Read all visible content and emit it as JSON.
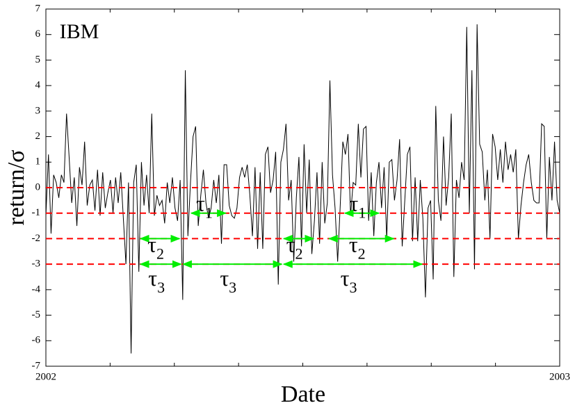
{
  "chart_data": {
    "type": "line",
    "annotation": "IBM",
    "x_label": "Date",
    "y_label": "return/σ",
    "xlim": [
      2002,
      2003
    ],
    "xticks": [
      2002,
      2003
    ],
    "ylim": [
      -7,
      7
    ],
    "yticks": [
      -7,
      -6,
      -5,
      -4,
      -3,
      -2,
      -1,
      0,
      1,
      2,
      3,
      4,
      5,
      6,
      7
    ],
    "series": [
      {
        "color": "#000000",
        "values": [
          -1.1,
          1.3,
          -1.8,
          0.5,
          0.2,
          -0.4,
          0.5,
          0.2,
          2.9,
          1.2,
          -0.6,
          0.4,
          -1.5,
          0.8,
          0.1,
          1.8,
          -0.7,
          0.1,
          0.3,
          -0.9,
          0.7,
          -1.1,
          0.6,
          -0.8,
          -0.2,
          0.3,
          -1.0,
          0.4,
          -0.6,
          0.6,
          -1.2,
          -3.0,
          0.2,
          -6.5,
          0.2,
          0.9,
          -3.3,
          1.0,
          -0.7,
          0.5,
          -1.0,
          2.9,
          -1.1,
          -0.3,
          -0.7,
          -0.5,
          -1.4,
          0.2,
          -0.6,
          0.4,
          -0.8,
          -1.3,
          0.3,
          -4.4,
          4.6,
          -1.9,
          0.2,
          2.0,
          2.4,
          -1.5,
          -0.3,
          0.7,
          -0.6,
          -1.2,
          -0.8,
          0.3,
          -0.6,
          0.5,
          -2.2,
          0.9,
          0.9,
          -0.7,
          -1.1,
          -1.2,
          -0.8,
          0.4,
          0.8,
          0.4,
          0.9,
          -0.3,
          -1.9,
          0.8,
          -2.4,
          0.6,
          -2.4,
          1.3,
          1.6,
          -0.2,
          0.3,
          1.4,
          -3.8,
          1.0,
          1.5,
          2.5,
          -0.5,
          0.3,
          -2.9,
          -0.4,
          1.2,
          -2.3,
          1.7,
          -1.0,
          1.1,
          -2.6,
          -1.3,
          0.6,
          -2.2,
          1.0,
          -1.4,
          -0.6,
          4.2,
          0.5,
          -0.8,
          -2.9,
          -0.7,
          1.8,
          1.3,
          2.1,
          -1.1,
          0.2,
          0.1,
          2.5,
          0.4,
          2.3,
          2.4,
          -1.3,
          0.6,
          -1.9,
          0.2,
          1.0,
          -0.8,
          0.8,
          -2.0,
          1.0,
          1.1,
          -0.5,
          0.3,
          1.9,
          -2.3,
          -0.5,
          1.3,
          1.6,
          -2.1,
          0.4,
          -2.1,
          0.3,
          -1.2,
          -4.3,
          -0.8,
          -0.5,
          -3.6,
          3.2,
          -0.5,
          -1.3,
          2.0,
          -0.7,
          0.4,
          2.9,
          -3.5,
          0.3,
          -0.4,
          1.0,
          0.3,
          6.3,
          -1.0,
          4.6,
          -3.2,
          6.4,
          1.7,
          1.4,
          -0.5,
          0.7,
          -2.0,
          2.1,
          1.6,
          0.3,
          1.5,
          0.2,
          1.8,
          0.7,
          1.3,
          0.6,
          1.5,
          -2.0,
          -0.7,
          0.2,
          0.9,
          1.3,
          0.2,
          -0.5,
          -0.6,
          -0.6,
          2.5,
          2.4,
          -2.0,
          1.2,
          -0.5,
          1.8,
          -0.5,
          -1.0
        ]
      }
    ],
    "reference_lines": {
      "values": [
        0,
        -1,
        -2,
        -3
      ],
      "color": "#ff0000",
      "style": "dashed"
    },
    "interval_color": "#00ee00",
    "intervals": [
      {
        "label": "τ",
        "sub": "1",
        "y": -1,
        "x": [
          2002.283,
          2002.35
        ]
      },
      {
        "label": "τ",
        "sub": "1",
        "y": -1,
        "x": [
          2002.582,
          2002.648
        ]
      },
      {
        "label": "τ",
        "sub": "2",
        "y": -2,
        "x": [
          2002.184,
          2002.26
        ]
      },
      {
        "label": "τ",
        "sub": "2",
        "y": -2,
        "x": [
          2002.463,
          2002.521
        ]
      },
      {
        "label": "τ",
        "sub": "2",
        "y": -2,
        "x": [
          2002.551,
          2002.677
        ]
      },
      {
        "label": "τ",
        "sub": "3",
        "y": -3,
        "x": [
          2002.184,
          2002.263
        ]
      },
      {
        "label": "τ",
        "sub": "3",
        "y": -3,
        "x": [
          2002.267,
          2002.459
        ]
      },
      {
        "label": "τ",
        "sub": "3",
        "y": -3,
        "x": [
          2002.463,
          2002.732
        ]
      }
    ]
  }
}
